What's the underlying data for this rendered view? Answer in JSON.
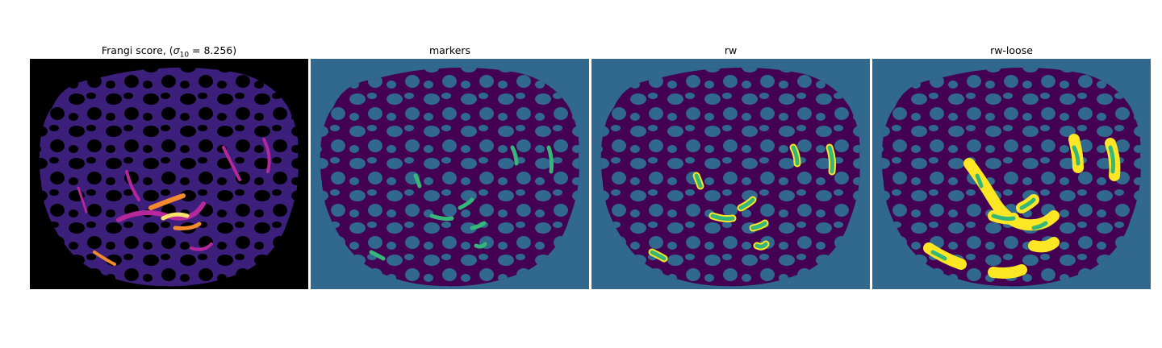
{
  "panels": [
    {
      "title_prefix": "Frangi score, (",
      "sigma_symbol": "σ",
      "sigma_sub": "10",
      "title_suffix": " = 8.256)"
    },
    {
      "title": "markers"
    },
    {
      "title": "rw"
    },
    {
      "title": "rw-loose"
    }
  ],
  "colors": {
    "frangi_bg": "#000000",
    "frangi_tissue": "#3b1f7a",
    "frangi_hot1": "#b5279a",
    "frangi_hot2": "#f48a2c",
    "frangi_hot3": "#fde26c",
    "seg_bg": "#31688e",
    "seg_tissue": "#440154",
    "marker_green": "#35b779",
    "rw_yellow": "#fde725"
  }
}
